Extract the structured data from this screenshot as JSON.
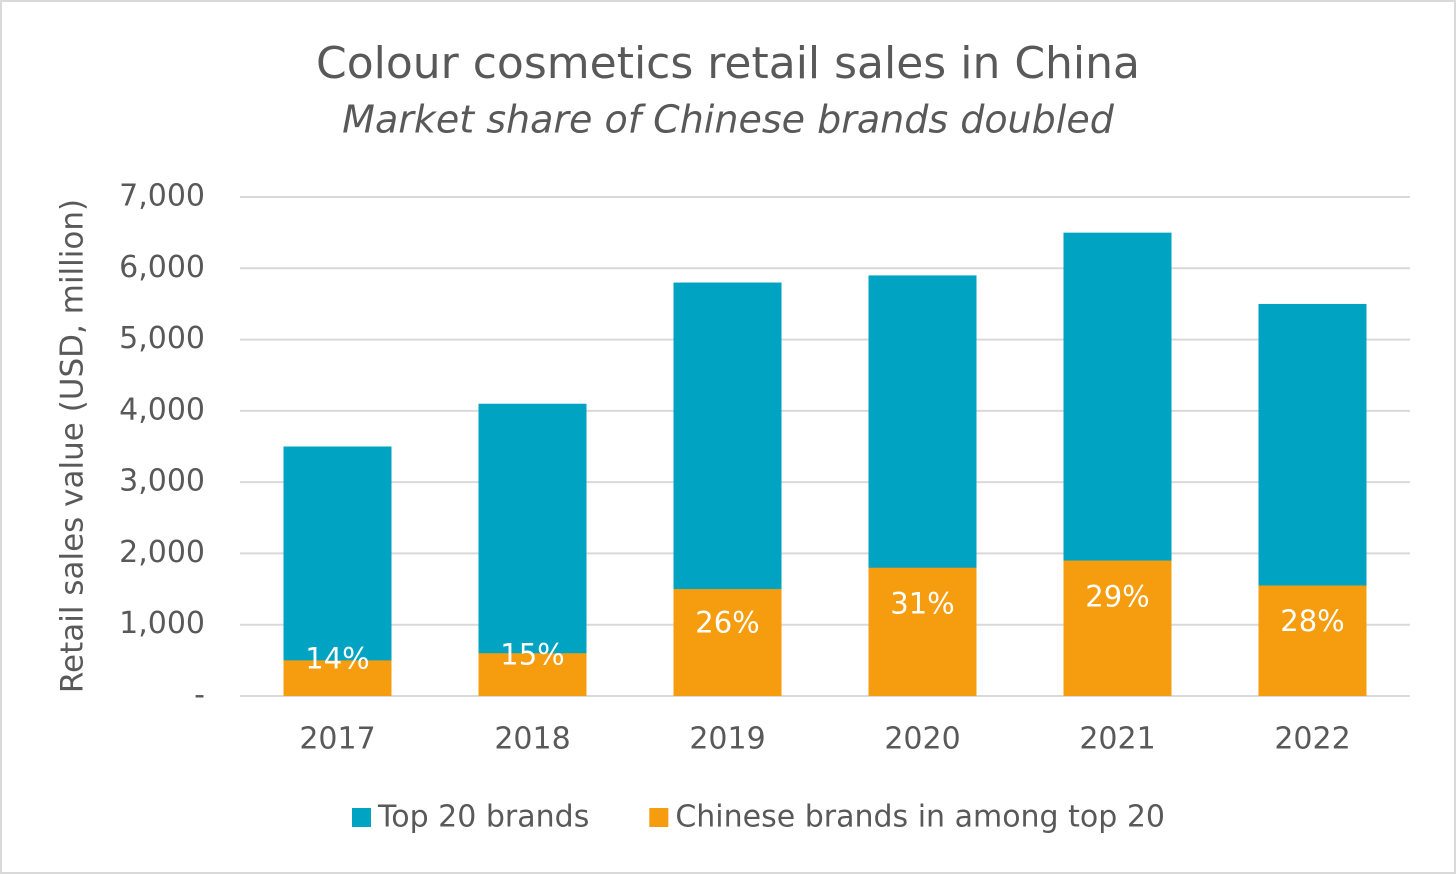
{
  "chart_data": {
    "type": "bar",
    "title": "Colour cosmetics retail sales in China",
    "subtitle": "Market share of Chinese brands doubled",
    "y_label": "Retail sales value (USD, million)",
    "categories": [
      "2017",
      "2018",
      "2019",
      "2020",
      "2021",
      "2022"
    ],
    "overlap": true,
    "series": [
      {
        "name": "Top 20 brands",
        "color": "#00a3c1",
        "values": [
          3500,
          4100,
          5800,
          5900,
          6500,
          5500
        ]
      },
      {
        "name": "Chinese brands in among top 20",
        "color": "#f59c0f",
        "values": [
          500,
          600,
          1500,
          1800,
          1900,
          1550
        ],
        "share_labels": [
          "14%",
          "15%",
          "26%",
          "31%",
          "29%",
          "28%"
        ]
      }
    ],
    "ylim": [
      0,
      7000
    ],
    "yticks": [
      {
        "value": 0,
        "label": "-"
      },
      {
        "value": 1000,
        "label": "1,000"
      },
      {
        "value": 2000,
        "label": "2,000"
      },
      {
        "value": 3000,
        "label": "3,000"
      },
      {
        "value": 4000,
        "label": "4,000"
      },
      {
        "value": 5000,
        "label": "5,000"
      },
      {
        "value": 6000,
        "label": "6,000"
      },
      {
        "value": 7000,
        "label": "7,000"
      }
    ],
    "grid": true,
    "legend": "bottom"
  }
}
